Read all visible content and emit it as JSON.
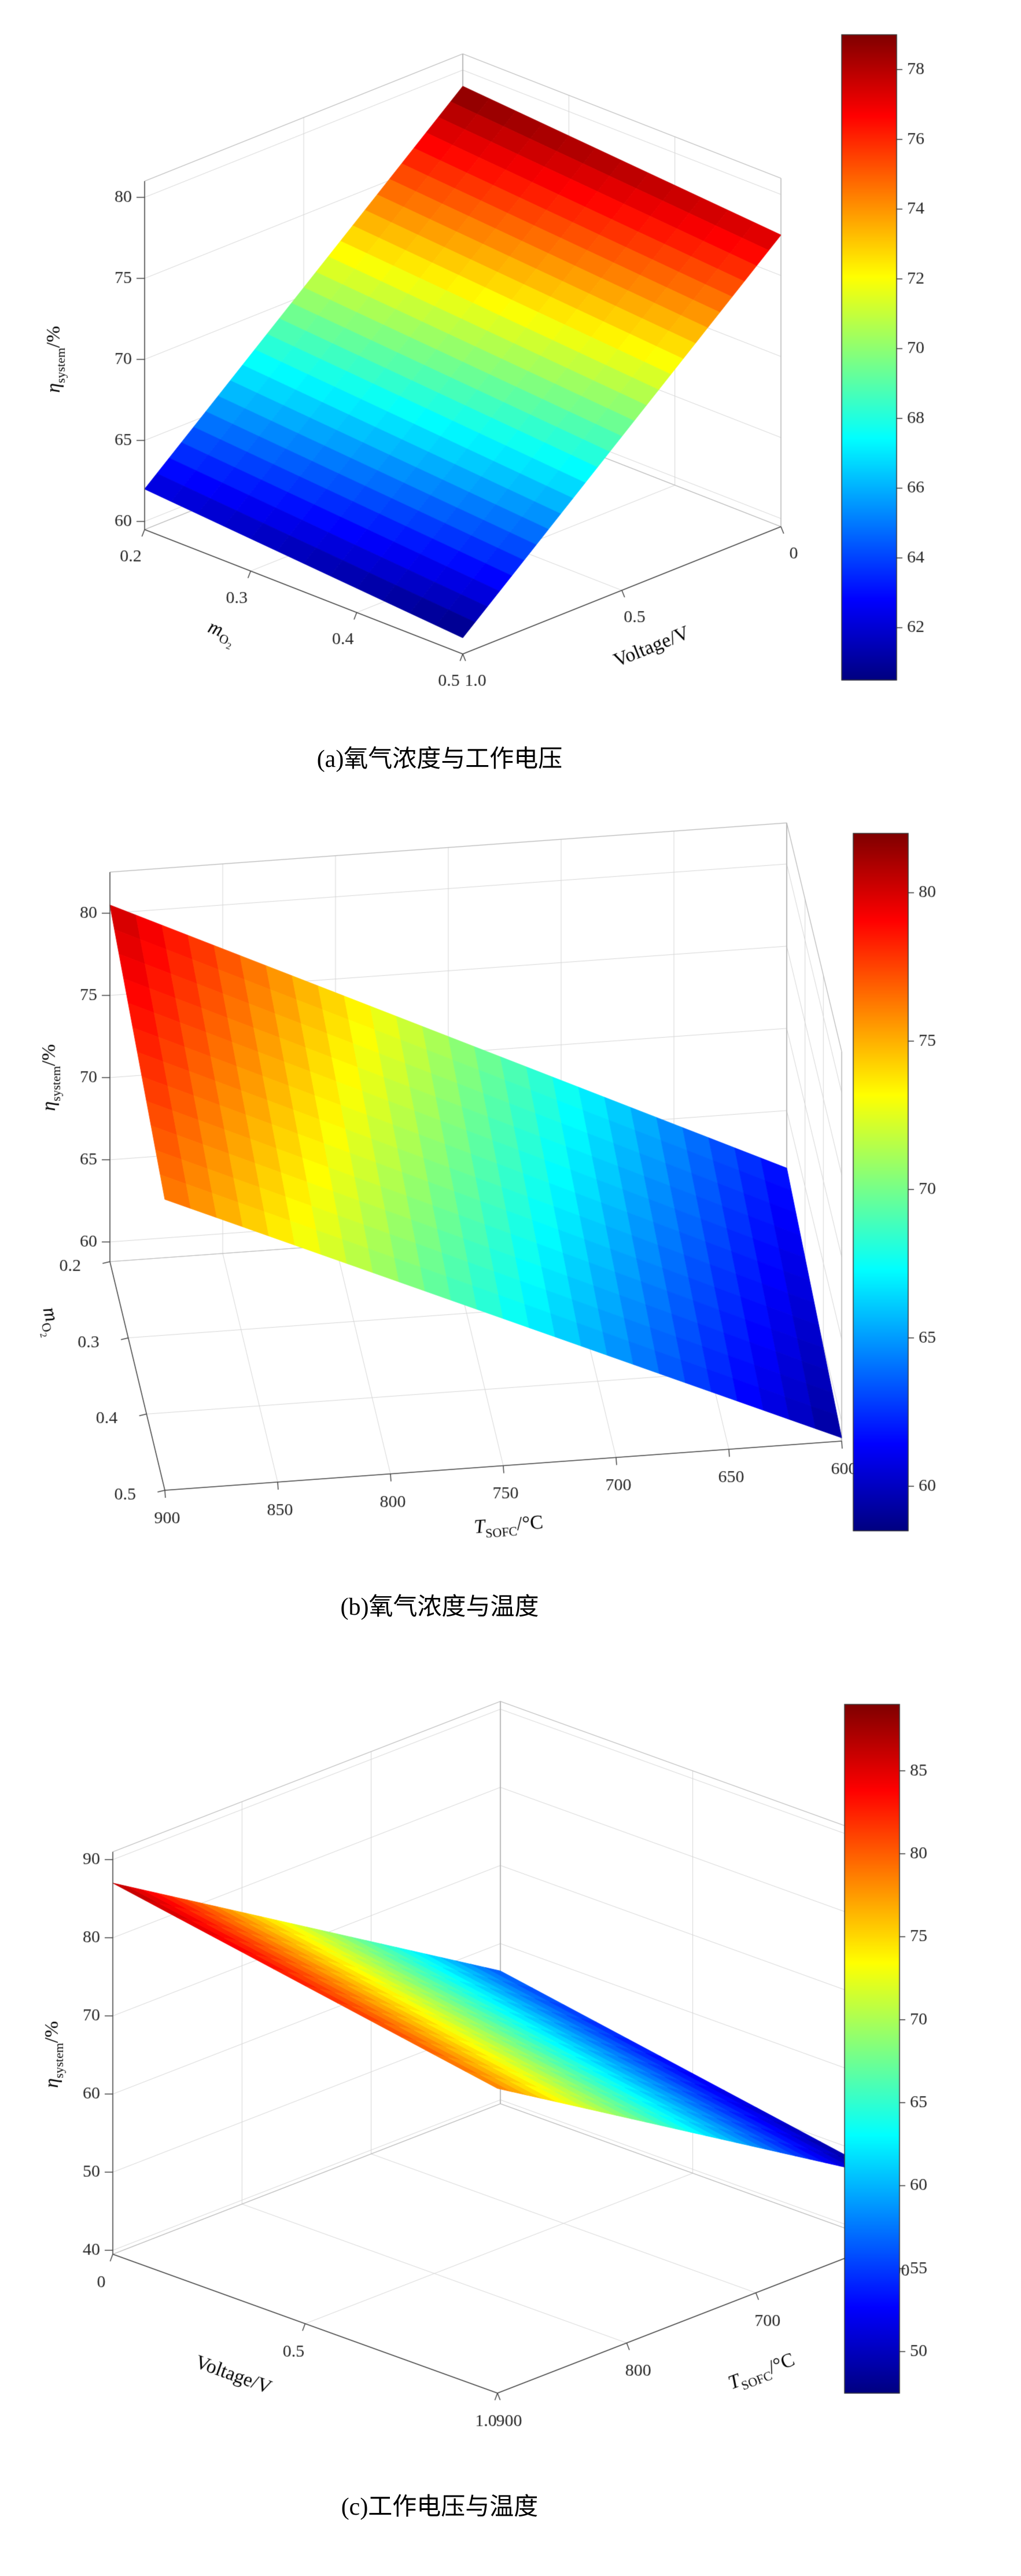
{
  "page": {
    "background": "#ffffff"
  },
  "chart_data": [
    {
      "type": "surface",
      "caption": "(a)氧气浓度与工作电压",
      "colormap": "jet",
      "z_axis": {
        "label": {
          "main": "η",
          "sub": "system",
          "suffix": "/%"
        },
        "ticks": [
          60,
          65,
          70,
          75,
          80
        ]
      },
      "axis1": {
        "label": {
          "main": "Voltage/V"
        },
        "ticks": [
          "0",
          "0.5",
          "1.0"
        ],
        "tick_values": [
          0,
          0.5,
          1.0
        ]
      },
      "axis2": {
        "label": {
          "main": "m",
          "sub": "O",
          "subsub": "2"
        },
        "ticks": [
          "0.2",
          "0.3",
          "0.4",
          "0.5"
        ],
        "tick_values": [
          0.2,
          0.3,
          0.4,
          0.5
        ]
      },
      "surface_points": [
        {
          "axis1": 0,
          "axis2": 0.2,
          "z": 79
        },
        {
          "axis1": 1.0,
          "axis2": 0.2,
          "z": 62
        },
        {
          "axis1": 0,
          "axis2": 0.5,
          "z": 77.5
        },
        {
          "axis1": 1.0,
          "axis2": 0.5,
          "z": 60.5
        }
      ],
      "colorbar": {
        "min": 60.5,
        "max": 79,
        "ticks": [
          62,
          64,
          66,
          68,
          70,
          72,
          74,
          76,
          78
        ]
      }
    },
    {
      "type": "surface",
      "caption": "(b)氧气浓度与温度",
      "colormap": "jet",
      "z_axis": {
        "label": {
          "main": "η",
          "sub": "system",
          "suffix": "/%"
        },
        "ticks": [
          60,
          65,
          70,
          75,
          80
        ]
      },
      "axis1": {
        "label": {
          "main": "T",
          "sub": "SOFC",
          "suffix": "/°C"
        },
        "ticks": [
          "900",
          "850",
          "800",
          "750",
          "700",
          "650",
          "600"
        ],
        "tick_values": [
          900,
          850,
          800,
          750,
          700,
          650,
          600
        ]
      },
      "axis2": {
        "label": {
          "main": "m",
          "sub": "O",
          "subsub": "2"
        },
        "ticks": [
          "0.2",
          "0.3",
          "0.4",
          "0.5"
        ],
        "tick_values": [
          0.2,
          0.3,
          0.4,
          0.5
        ]
      },
      "surface_points": [
        {
          "axis1": 900,
          "axis2": 0.2,
          "z": 80.5
        },
        {
          "axis1": 600,
          "axis2": 0.2,
          "z": 61.5
        },
        {
          "axis1": 900,
          "axis2": 0.5,
          "z": 76.5
        },
        {
          "axis1": 600,
          "axis2": 0.5,
          "z": 59
        }
      ],
      "colorbar": {
        "min": 58.5,
        "max": 82,
        "ticks": [
          60,
          65,
          70,
          75,
          80
        ]
      }
    },
    {
      "type": "surface",
      "caption": "(c)工作电压与温度",
      "colormap": "jet",
      "z_axis": {
        "label": {
          "main": "η",
          "sub": "system",
          "suffix": "/%"
        },
        "ticks": [
          40,
          50,
          60,
          70,
          80,
          90
        ]
      },
      "axis1": {
        "label": {
          "main": "Voltage/V"
        },
        "ticks": [
          "0",
          "0.5",
          "1.0"
        ],
        "tick_values": [
          0,
          0.5,
          1.0
        ]
      },
      "axis2": {
        "label": {
          "main": "T",
          "sub": "SOFC",
          "suffix": "/°C"
        },
        "ticks": [
          "900",
          "800",
          "700",
          "600"
        ],
        "tick_values": [
          900,
          800,
          700,
          600
        ]
      },
      "surface_points": [
        {
          "axis1": 0,
          "axis2": 900,
          "z": 87
        },
        {
          "axis1": 1.0,
          "axis2": 900,
          "z": 78.5
        },
        {
          "axis1": 0,
          "axis2": 600,
          "z": 56.5
        },
        {
          "axis1": 1.0,
          "axis2": 600,
          "z": 48
        }
      ],
      "colorbar": {
        "min": 47.5,
        "max": 89,
        "ticks": [
          50,
          55,
          60,
          65,
          70,
          75,
          80,
          85
        ]
      }
    }
  ]
}
